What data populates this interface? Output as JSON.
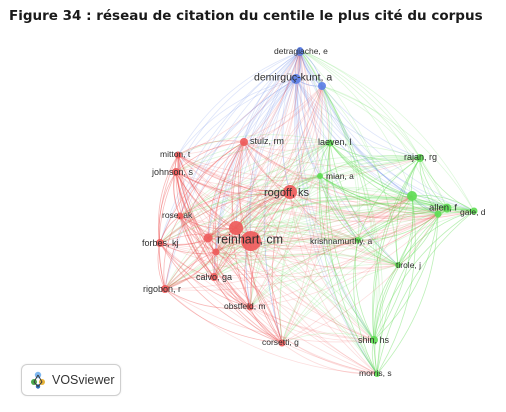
{
  "figure_title": "Figure 34 : réseau de citation du centile le plus cité du corpus",
  "software_badge": "VOSviewer",
  "colors": {
    "red": "#ee5b5b",
    "green": "#5fdc54",
    "blue": "#5b7fe6"
  },
  "nodes": [
    {
      "label": "detragiache, e",
      "cluster": "blue"
    },
    {
      "label": "demirgüç-kunt, a",
      "cluster": "blue"
    },
    {
      "label": "stulz, rm",
      "cluster": "red"
    },
    {
      "label": "laeven, l",
      "cluster": "green"
    },
    {
      "label": "mitton, t",
      "cluster": "red"
    },
    {
      "label": "rajan, rg",
      "cluster": "green"
    },
    {
      "label": "johnson, s",
      "cluster": "red"
    },
    {
      "label": "mian, a",
      "cluster": "green"
    },
    {
      "label": "rogoff, ks",
      "cluster": "red"
    },
    {
      "label": "allen, f",
      "cluster": "green"
    },
    {
      "label": "gale, d",
      "cluster": "green"
    },
    {
      "label": "rose, ak",
      "cluster": "red"
    },
    {
      "label": "reinhart, cm",
      "cluster": "red"
    },
    {
      "label": "forbes, kj",
      "cluster": "red"
    },
    {
      "label": "krishnamurthy, a",
      "cluster": "green"
    },
    {
      "label": "tirole, j",
      "cluster": "green"
    },
    {
      "label": "calvo, ga",
      "cluster": "red"
    },
    {
      "label": "rigobon, r",
      "cluster": "red"
    },
    {
      "label": "obstfeld, m",
      "cluster": "red"
    },
    {
      "label": "shin, hs",
      "cluster": "green"
    },
    {
      "label": "corsetti, g",
      "cluster": "red"
    },
    {
      "label": "morris, s",
      "cluster": "green"
    }
  ]
}
